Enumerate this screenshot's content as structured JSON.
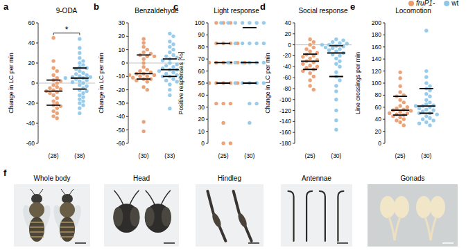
{
  "chart_data": [
    {
      "panel": "a",
      "type": "scatter",
      "title": "9-ODA",
      "y_label": "Change in LC per min",
      "ylim": [
        -60,
        60
      ],
      "yticks": [
        -60,
        -40,
        -20,
        0,
        20,
        40,
        60
      ],
      "hline": 0,
      "significance": {
        "text": "*"
      },
      "series": [
        {
          "name": "fruP1-",
          "color": "#e9996b",
          "n_label": "(28)",
          "median": -8,
          "q1": -22,
          "q3": 3,
          "values": [
            45,
            22,
            15,
            12,
            8,
            5,
            3,
            2,
            0,
            -2,
            -4,
            -5,
            -6,
            -7,
            -8,
            -9,
            -10,
            -12,
            -15,
            -18,
            -20,
            -22,
            -23,
            -25,
            -28,
            -30,
            -33,
            -35
          ]
        },
        {
          "name": "wt",
          "color": "#8ec6e8",
          "n_label": "(38)",
          "median": 5,
          "q1": -6,
          "q3": 15,
          "values": [
            44,
            35,
            30,
            25,
            22,
            20,
            18,
            16,
            15,
            14,
            12,
            10,
            9,
            8,
            7,
            6,
            6,
            5,
            5,
            4,
            3,
            2,
            1,
            0,
            -2,
            -3,
            -5,
            -7,
            -8,
            -10,
            -12,
            -14,
            -16,
            -18,
            -20,
            -22,
            -25,
            -30
          ]
        }
      ]
    },
    {
      "panel": "b",
      "type": "scatter",
      "title": "Benzaldehyde",
      "y_label": "Change in LC per min",
      "ylim": [
        -60,
        30
      ],
      "yticks": [
        -60,
        -50,
        -40,
        -30,
        -20,
        -10,
        0,
        10,
        20,
        30
      ],
      "hline": 0,
      "series": [
        {
          "name": "fruP1-",
          "color": "#e9996b",
          "n_label": "(30)",
          "median": -8,
          "q1": -12,
          "q3": 6,
          "values": [
            18,
            15,
            12,
            10,
            8,
            7,
            6,
            5,
            5,
            3,
            0,
            -3,
            -5,
            -6,
            -7,
            -8,
            -8,
            -9,
            -9,
            -10,
            -10,
            -11,
            -12,
            -12,
            -13,
            -14,
            -18,
            -20,
            -44,
            -51
          ]
        },
        {
          "name": "wt",
          "color": "#8ec6e8",
          "n_label": "(33)",
          "median": -5,
          "q1": -10,
          "q3": 3,
          "values": [
            22,
            20,
            16,
            14,
            12,
            10,
            8,
            6,
            5,
            4,
            3,
            2,
            0,
            -1,
            -2,
            -3,
            -4,
            -5,
            -5,
            -6,
            -7,
            -8,
            -9,
            -10,
            -10,
            -11,
            -12,
            -13,
            -14,
            -16,
            -20,
            -24,
            -34
          ]
        }
      ]
    },
    {
      "panel": "c",
      "type": "scatter",
      "title": "Light response",
      "y_label": "Positive responses [%]",
      "ylim": [
        0,
        100
      ],
      "yticks": [
        0,
        10,
        20,
        30,
        40,
        50,
        60,
        70,
        80,
        90,
        100
      ],
      "series": [
        {
          "name": "fruP1-",
          "color": "#e9996b",
          "n_label": "(25)",
          "median": 67,
          "q1": 50,
          "q3": 83,
          "values": [
            100,
            100,
            100,
            83,
            83,
            83,
            83,
            67,
            67,
            67,
            67,
            67,
            67,
            67,
            50,
            50,
            50,
            50,
            50,
            33,
            33,
            33,
            17,
            0,
            0
          ]
        },
        {
          "name": "wt",
          "color": "#8ec6e8",
          "n_label": "(30)",
          "median": 67,
          "q1": 50,
          "q3": 96,
          "values": [
            100,
            100,
            100,
            100,
            100,
            100,
            100,
            100,
            100,
            83,
            83,
            83,
            83,
            83,
            83,
            67,
            67,
            67,
            67,
            67,
            67,
            67,
            50,
            50,
            50,
            50,
            50,
            33,
            33,
            17
          ]
        }
      ]
    },
    {
      "panel": "d",
      "type": "scatter",
      "title": "Social response",
      "y_label": "Change in LC per min",
      "ylim": [
        -180,
        40
      ],
      "yticks": [
        -180,
        -160,
        -140,
        -120,
        -100,
        -80,
        -60,
        -40,
        -20,
        0,
        20,
        40
      ],
      "hline": 0,
      "series": [
        {
          "name": "fruP1-",
          "color": "#e9996b",
          "n_label": "(25)",
          "median": -30,
          "q1": -45,
          "q3": -17,
          "values": [
            10,
            5,
            0,
            -5,
            -8,
            -12,
            -15,
            -18,
            -20,
            -22,
            -25,
            -28,
            -30,
            -32,
            -35,
            -38,
            -40,
            -42,
            -45,
            -48,
            -52,
            -58,
            -65,
            -75,
            -82
          ]
        },
        {
          "name": "wt",
          "color": "#8ec6e8",
          "n_label": "(30)",
          "median": -15,
          "q1": -58,
          "q3": -2,
          "values": [
            10,
            8,
            5,
            3,
            2,
            0,
            0,
            -2,
            -3,
            -5,
            -6,
            -8,
            -10,
            -12,
            -15,
            -18,
            -20,
            -25,
            -30,
            -35,
            -40,
            -50,
            -58,
            -65,
            -75,
            -85,
            -100,
            -120,
            -138,
            -155
          ]
        }
      ]
    },
    {
      "panel": "e",
      "type": "scatter",
      "title": "Locomotion",
      "y_label": "Line crossings per min",
      "ylim": [
        0,
        200
      ],
      "yticks": [
        0,
        20,
        40,
        60,
        80,
        100,
        120,
        140,
        160,
        180,
        200
      ],
      "legend": "top right",
      "series": [
        {
          "name": "fruP1-",
          "color": "#e9996b",
          "n_label": "(25)",
          "median": 55,
          "q1": 47,
          "q3": 78,
          "values": [
            118,
            108,
            95,
            85,
            80,
            78,
            72,
            68,
            62,
            60,
            58,
            56,
            55,
            54,
            52,
            50,
            50,
            48,
            47,
            45,
            43,
            40,
            38,
            35,
            30
          ]
        },
        {
          "name": "wt",
          "color": "#8ec6e8",
          "n_label": "(30)",
          "median": 62,
          "q1": 50,
          "q3": 91,
          "values": [
            187,
            120,
            110,
            100,
            95,
            91,
            88,
            82,
            78,
            72,
            68,
            65,
            63,
            62,
            62,
            60,
            58,
            56,
            55,
            53,
            50,
            50,
            48,
            45,
            42,
            40,
            38,
            35,
            33,
            30
          ]
        }
      ]
    }
  ],
  "photo_panel": {
    "label": "f",
    "captions": [
      "Whole body",
      "Head",
      "Hindleg",
      "Antennae",
      "Gonads"
    ]
  }
}
